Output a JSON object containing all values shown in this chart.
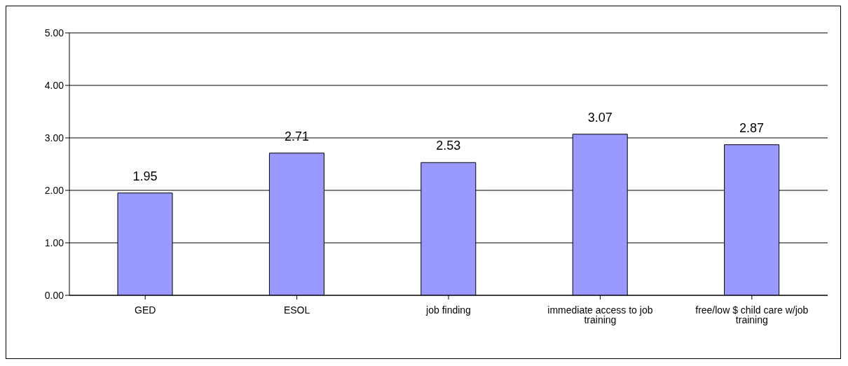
{
  "chart_data": {
    "type": "bar",
    "categories": [
      "GED",
      "ESOL",
      "job finding",
      "immediate access to job training",
      "free/low $ child care w/job training"
    ],
    "values": [
      1.95,
      2.71,
      2.53,
      3.07,
      2.87
    ],
    "color": "#9999ff",
    "ylim": [
      0,
      5
    ],
    "yticks": [
      {
        "value": 0,
        "label": "0.00"
      },
      {
        "value": 1,
        "label": "1.00"
      },
      {
        "value": 2,
        "label": "2.00"
      },
      {
        "value": 3,
        "label": "3.00"
      },
      {
        "value": 4,
        "label": "4.00"
      },
      {
        "value": 5,
        "label": "5.00"
      }
    ],
    "grid": "y",
    "data_labels": true,
    "legend": false
  }
}
